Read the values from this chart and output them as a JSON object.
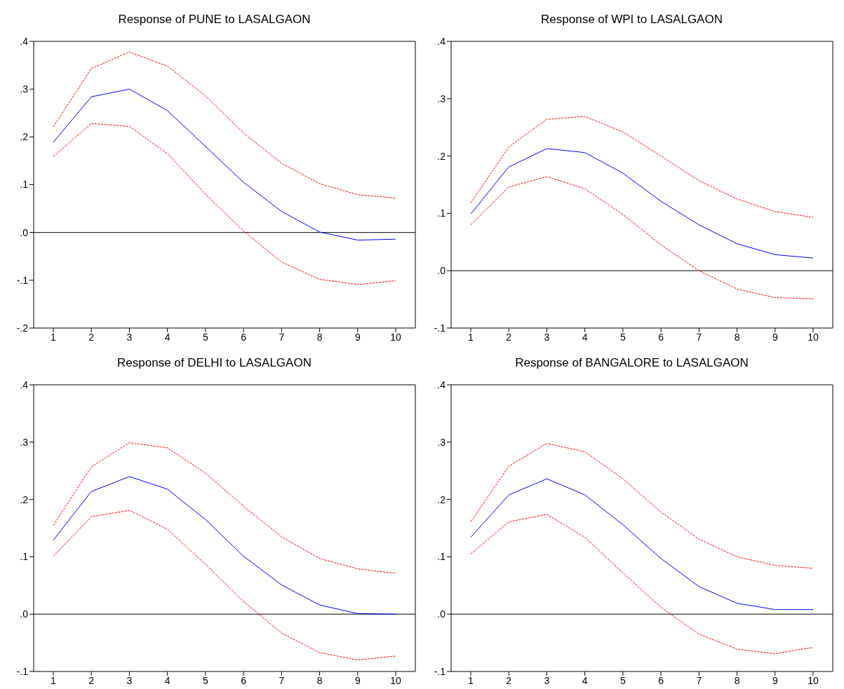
{
  "chart_data": [
    {
      "type": "line",
      "title": "Response of PUNE to LASALGAON",
      "categories": [
        "1",
        "2",
        "3",
        "4",
        "5",
        "6",
        "7",
        "8",
        "9",
        "10"
      ],
      "ylim": [
        -0.2,
        0.4
      ],
      "yticks": [
        {
          "value": -0.2,
          "label": "-.2"
        },
        {
          "value": -0.1,
          "label": "-.1"
        },
        {
          "value": 0,
          "label": ".0"
        },
        {
          "value": 0.1,
          "label": ".1"
        },
        {
          "value": 0.2,
          "label": ".2"
        },
        {
          "value": 0.3,
          "label": ".3"
        },
        {
          "value": 0.4,
          "label": ".4"
        }
      ],
      "ref_lines": [
        {
          "axis": "y",
          "value": 0,
          "color": "#000000"
        }
      ],
      "series": [
        {
          "color": "#0000ff",
          "line_style": "solid",
          "values": [
            0.189,
            0.284,
            0.3,
            0.255,
            0.18,
            0.105,
            0.044,
            0.001,
            -0.016,
            -0.014
          ]
        },
        {
          "color": "#ff0000",
          "line_style": "dashed",
          "values": [
            0.221,
            0.343,
            0.378,
            0.348,
            0.286,
            0.208,
            0.145,
            0.102,
            0.079,
            0.072
          ]
        },
        {
          "color": "#ff0000",
          "line_style": "dashed",
          "values": [
            0.159,
            0.228,
            0.222,
            0.165,
            0.08,
            0.003,
            -0.062,
            -0.098,
            -0.109,
            -0.101
          ]
        }
      ]
    },
    {
      "type": "line",
      "title": "Response of WPI to LASALGAON",
      "categories": [
        "1",
        "2",
        "3",
        "4",
        "5",
        "6",
        "7",
        "8",
        "9",
        "10"
      ],
      "ylim": [
        -0.1,
        0.4
      ],
      "yticks": [
        {
          "value": -0.1,
          "label": "-.1"
        },
        {
          "value": 0,
          "label": ".0"
        },
        {
          "value": 0.1,
          "label": ".1"
        },
        {
          "value": 0.2,
          "label": ".2"
        },
        {
          "value": 0.3,
          "label": ".3"
        },
        {
          "value": 0.4,
          "label": ".4"
        }
      ],
      "ref_lines": [
        {
          "axis": "y",
          "value": 0,
          "color": "#000000"
        }
      ],
      "series": [
        {
          "color": "#0000ff",
          "line_style": "solid",
          "values": [
            0.099,
            0.181,
            0.213,
            0.206,
            0.17,
            0.121,
            0.08,
            0.047,
            0.028,
            0.022
          ]
        },
        {
          "color": "#ff0000",
          "line_style": "dashed",
          "values": [
            0.118,
            0.216,
            0.264,
            0.269,
            0.242,
            0.2,
            0.157,
            0.125,
            0.103,
            0.093
          ]
        },
        {
          "color": "#ff0000",
          "line_style": "dashed",
          "values": [
            0.08,
            0.146,
            0.164,
            0.143,
            0.098,
            0.045,
            0.0,
            -0.032,
            -0.047,
            -0.049
          ]
        }
      ]
    },
    {
      "type": "line",
      "title": "Response of DELHI to LASALGAON",
      "categories": [
        "1",
        "2",
        "3",
        "4",
        "5",
        "6",
        "7",
        "8",
        "9",
        "10"
      ],
      "ylim": [
        -0.1,
        0.4
      ],
      "yticks": [
        {
          "value": -0.1,
          "label": "-.1"
        },
        {
          "value": 0,
          "label": ".0"
        },
        {
          "value": 0.1,
          "label": ".1"
        },
        {
          "value": 0.2,
          "label": ".2"
        },
        {
          "value": 0.3,
          "label": ".3"
        },
        {
          "value": 0.4,
          "label": ".4"
        }
      ],
      "ref_lines": [
        {
          "axis": "y",
          "value": 0,
          "color": "#000000"
        }
      ],
      "series": [
        {
          "color": "#0000ff",
          "line_style": "solid",
          "values": [
            0.129,
            0.214,
            0.24,
            0.218,
            0.165,
            0.101,
            0.051,
            0.016,
            0.001,
            0.0
          ]
        },
        {
          "color": "#ff0000",
          "line_style": "dashed",
          "values": [
            0.155,
            0.257,
            0.299,
            0.29,
            0.246,
            0.188,
            0.135,
            0.097,
            0.079,
            0.071
          ]
        },
        {
          "color": "#ff0000",
          "line_style": "dashed",
          "values": [
            0.101,
            0.17,
            0.181,
            0.148,
            0.087,
            0.022,
            -0.033,
            -0.067,
            -0.08,
            -0.073
          ]
        }
      ]
    },
    {
      "type": "line",
      "title": "Response of BANGALORE to LASALGAON",
      "categories": [
        "1",
        "2",
        "3",
        "4",
        "5",
        "6",
        "7",
        "8",
        "9",
        "10"
      ],
      "ylim": [
        -0.1,
        0.4
      ],
      "yticks": [
        {
          "value": -0.1,
          "label": "-.1"
        },
        {
          "value": 0,
          "label": ".0"
        },
        {
          "value": 0.1,
          "label": ".1"
        },
        {
          "value": 0.2,
          "label": ".2"
        },
        {
          "value": 0.3,
          "label": ".3"
        },
        {
          "value": 0.4,
          "label": ".4"
        }
      ],
      "ref_lines": [
        {
          "axis": "y",
          "value": 0,
          "color": "#000000"
        }
      ],
      "series": [
        {
          "color": "#0000ff",
          "line_style": "solid",
          "values": [
            0.134,
            0.208,
            0.236,
            0.208,
            0.156,
            0.097,
            0.048,
            0.019,
            0.008,
            0.008
          ]
        },
        {
          "color": "#ff0000",
          "line_style": "dashed",
          "values": [
            0.161,
            0.258,
            0.298,
            0.283,
            0.236,
            0.178,
            0.131,
            0.1,
            0.085,
            0.08
          ]
        },
        {
          "color": "#ff0000",
          "line_style": "dashed",
          "values": [
            0.105,
            0.161,
            0.174,
            0.134,
            0.072,
            0.012,
            -0.035,
            -0.061,
            -0.069,
            -0.058
          ]
        }
      ]
    }
  ]
}
